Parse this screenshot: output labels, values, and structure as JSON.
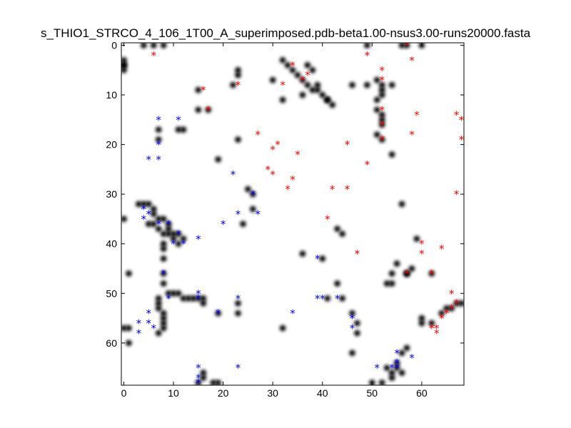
{
  "chart_data": {
    "type": "heatmap",
    "title": "s_THIO1_STRCO_4_106_1T00_A_superimposed.pdb-beta1.00-nsus3.00-runs20000.fasta",
    "xlim": [
      -0.5,
      68.5
    ],
    "ylim": [
      68.5,
      -0.5
    ],
    "y_inverted": true,
    "grid": false,
    "x_ticks": [
      0,
      10,
      20,
      30,
      40,
      50,
      60
    ],
    "y_ticks": [
      0,
      10,
      20,
      30,
      40,
      50,
      60
    ],
    "colors": {
      "contact": "#000000",
      "upper_series": "#ff0000",
      "lower_series": "#0000ff"
    },
    "contact_map": [
      [
        0,
        4
      ],
      [
        0,
        5
      ],
      [
        0,
        35
      ],
      [
        1,
        46
      ],
      [
        1,
        60
      ],
      [
        0,
        57
      ],
      [
        1,
        57
      ],
      [
        4,
        0
      ],
      [
        6,
        0
      ],
      [
        8,
        0
      ],
      [
        0,
        3
      ],
      [
        0,
        4
      ],
      [
        7,
        17
      ],
      [
        7,
        19
      ],
      [
        11,
        17
      ],
      [
        12,
        17
      ],
      [
        15,
        9
      ],
      [
        17,
        13
      ],
      [
        15,
        13
      ],
      [
        19,
        23
      ],
      [
        22,
        8
      ],
      [
        23,
        5
      ],
      [
        23,
        6
      ],
      [
        23,
        19
      ],
      [
        3,
        32
      ],
      [
        4,
        32
      ],
      [
        5,
        32
      ],
      [
        6,
        33
      ],
      [
        6,
        34
      ],
      [
        7,
        35
      ],
      [
        8,
        35
      ],
      [
        9,
        36
      ],
      [
        9,
        37
      ],
      [
        10,
        38
      ],
      [
        11,
        38
      ],
      [
        12,
        39
      ],
      [
        11,
        40
      ],
      [
        5,
        36
      ],
      [
        6,
        36
      ],
      [
        7,
        37
      ],
      [
        8,
        38
      ],
      [
        9,
        38
      ],
      [
        10,
        39
      ],
      [
        8,
        40
      ],
      [
        8,
        41
      ],
      [
        8,
        43
      ],
      [
        8,
        46
      ],
      [
        8,
        48
      ],
      [
        9,
        50
      ],
      [
        10,
        50
      ],
      [
        11,
        50
      ],
      [
        12,
        51
      ],
      [
        13,
        51
      ],
      [
        14,
        51
      ],
      [
        15,
        51
      ],
      [
        16,
        51
      ],
      [
        16,
        52
      ],
      [
        7,
        51
      ],
      [
        7,
        52
      ],
      [
        7,
        53
      ],
      [
        8,
        54
      ],
      [
        8,
        55
      ],
      [
        8,
        56
      ],
      [
        8,
        57
      ],
      [
        7,
        58
      ],
      [
        18,
        68
      ],
      [
        19,
        68
      ],
      [
        15,
        68
      ],
      [
        16,
        67
      ],
      [
        16,
        66
      ],
      [
        23,
        52
      ],
      [
        23,
        54
      ],
      [
        19,
        54
      ],
      [
        25,
        29
      ],
      [
        26,
        30
      ],
      [
        26,
        33
      ],
      [
        24,
        36
      ],
      [
        32,
        3
      ],
      [
        33,
        4
      ],
      [
        34,
        5
      ],
      [
        35,
        6
      ],
      [
        36,
        7
      ],
      [
        37,
        8
      ],
      [
        38,
        9
      ],
      [
        39,
        9
      ],
      [
        40,
        10
      ],
      [
        41,
        11
      ],
      [
        42,
        12
      ],
      [
        37,
        4
      ],
      [
        38,
        5
      ],
      [
        30,
        7
      ],
      [
        32,
        11
      ],
      [
        36,
        10
      ],
      [
        39,
        8
      ],
      [
        41,
        11
      ],
      [
        36,
        42
      ],
      [
        40,
        43
      ],
      [
        43,
        37
      ],
      [
        44,
        38
      ],
      [
        43,
        48
      ],
      [
        32,
        57
      ],
      [
        41,
        51
      ],
      [
        44,
        51
      ],
      [
        46,
        8
      ],
      [
        46,
        54
      ],
      [
        46,
        62
      ],
      [
        47,
        56
      ],
      [
        47,
        58
      ],
      [
        49,
        0
      ],
      [
        49,
        8
      ],
      [
        52,
        8
      ],
      [
        52,
        9
      ],
      [
        52,
        10
      ],
      [
        51,
        13
      ],
      [
        52,
        14
      ],
      [
        52,
        15
      ],
      [
        52,
        16
      ],
      [
        51,
        18
      ],
      [
        52,
        19
      ],
      [
        51,
        7
      ],
      [
        51,
        11
      ],
      [
        54,
        8
      ],
      [
        54,
        22
      ],
      [
        56,
        32
      ],
      [
        55,
        44
      ],
      [
        54,
        46
      ],
      [
        53,
        48
      ],
      [
        54,
        48
      ],
      [
        57,
        46
      ],
      [
        58,
        45
      ],
      [
        56,
        0
      ],
      [
        57,
        0
      ],
      [
        60,
        0
      ],
      [
        55,
        64
      ],
      [
        55,
        65
      ],
      [
        56,
        66
      ],
      [
        57,
        61
      ],
      [
        56,
        62
      ],
      [
        54,
        66
      ],
      [
        54,
        67
      ],
      [
        53,
        65
      ],
      [
        52,
        68
      ],
      [
        50,
        68
      ],
      [
        60,
        55
      ],
      [
        60,
        56
      ],
      [
        62,
        56
      ],
      [
        64,
        54
      ],
      [
        65,
        53
      ],
      [
        66,
        53
      ],
      [
        67,
        52
      ],
      [
        68,
        52
      ],
      [
        62,
        46
      ],
      [
        59,
        39
      ],
      [
        57,
        46
      ]
    ],
    "series": [
      {
        "marker": "*",
        "color": "#ff0000",
        "points": [
          [
            6,
            2
          ],
          [
            57,
            0
          ],
          [
            58,
            3
          ],
          [
            49,
            2
          ],
          [
            52,
            5
          ],
          [
            52,
            7
          ],
          [
            34,
            4
          ],
          [
            36,
            7
          ],
          [
            37,
            6
          ],
          [
            32,
            8
          ],
          [
            23,
            8
          ],
          [
            16,
            9
          ],
          [
            17,
            13
          ],
          [
            52,
            13
          ],
          [
            52,
            16
          ],
          [
            52,
            19
          ],
          [
            59,
            14
          ],
          [
            58,
            18
          ],
          [
            67,
            14
          ],
          [
            68,
            15
          ],
          [
            68,
            19
          ],
          [
            27,
            18
          ],
          [
            31,
            20
          ],
          [
            30,
            21
          ],
          [
            35,
            22
          ],
          [
            45,
            20
          ],
          [
            49,
            24
          ],
          [
            29,
            25
          ],
          [
            30,
            26
          ],
          [
            34,
            27
          ],
          [
            33,
            29
          ],
          [
            42,
            29
          ],
          [
            45,
            29
          ],
          [
            67,
            30
          ],
          [
            41,
            35
          ],
          [
            47,
            42
          ],
          [
            60,
            40
          ],
          [
            60,
            42
          ],
          [
            64,
            41
          ],
          [
            57,
            46
          ],
          [
            62,
            46
          ],
          [
            66,
            50
          ],
          [
            67,
            52
          ],
          [
            66,
            53
          ],
          [
            65,
            54
          ],
          [
            64,
            55
          ],
          [
            63,
            57
          ],
          [
            62,
            57
          ],
          [
            63,
            58
          ]
        ]
      },
      {
        "marker": "*",
        "color": "#0000ff",
        "points": [
          [
            7,
            15
          ],
          [
            11,
            15
          ],
          [
            7,
            20
          ],
          [
            5,
            23
          ],
          [
            7,
            23
          ],
          [
            22,
            26
          ],
          [
            26,
            30
          ],
          [
            4,
            33
          ],
          [
            5,
            34
          ],
          [
            4,
            35
          ],
          [
            7,
            36
          ],
          [
            9,
            36
          ],
          [
            23,
            34
          ],
          [
            27,
            34
          ],
          [
            20,
            36
          ],
          [
            11,
            38
          ],
          [
            10,
            40
          ],
          [
            12,
            40
          ],
          [
            15,
            39
          ],
          [
            39,
            43
          ],
          [
            8,
            46
          ],
          [
            9,
            51
          ],
          [
            15,
            50
          ],
          [
            15,
            51
          ],
          [
            23,
            51
          ],
          [
            39,
            51
          ],
          [
            40,
            51
          ],
          [
            43,
            51
          ],
          [
            5,
            54
          ],
          [
            19,
            54
          ],
          [
            34,
            54
          ],
          [
            3,
            56
          ],
          [
            5,
            56
          ],
          [
            6,
            57
          ],
          [
            3,
            58
          ],
          [
            46,
            55
          ],
          [
            46,
            57
          ],
          [
            55,
            62
          ],
          [
            58,
            63
          ],
          [
            55,
            64
          ],
          [
            54,
            65
          ],
          [
            55,
            65
          ],
          [
            51,
            65
          ],
          [
            15,
            65
          ],
          [
            23,
            65
          ],
          [
            15,
            67
          ],
          [
            15,
            68
          ]
        ]
      }
    ]
  }
}
